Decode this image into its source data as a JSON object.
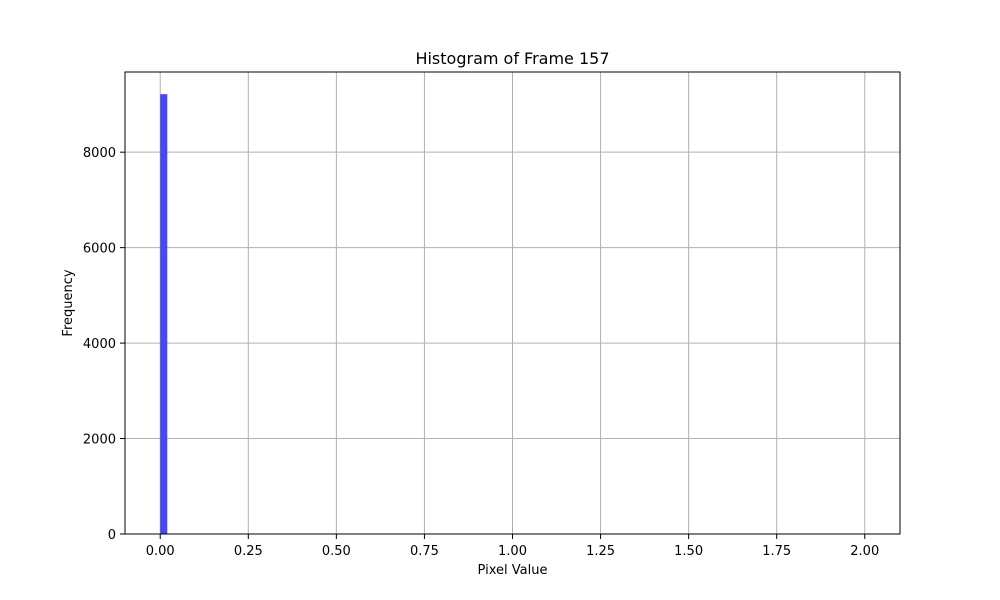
{
  "chart_data": {
    "type": "bar",
    "title": "Histogram of Frame 157",
    "xlabel": "Pixel Value",
    "ylabel": "Frequency",
    "xlim": [
      -0.1,
      2.1
    ],
    "ylim": [
      0,
      9680
    ],
    "grid": true,
    "x_ticks": [
      0.0,
      0.25,
      0.5,
      0.75,
      1.0,
      1.25,
      1.5,
      1.75,
      2.0
    ],
    "x_tick_labels": [
      "0.00",
      "0.25",
      "0.50",
      "0.75",
      "1.00",
      "1.25",
      "1.50",
      "1.75",
      "2.00"
    ],
    "y_ticks": [
      0,
      2000,
      4000,
      6000,
      8000
    ],
    "y_tick_labels": [
      "0",
      "2000",
      "4000",
      "6000",
      "8000"
    ],
    "bin_width": 0.02,
    "bins": [
      {
        "x_start": 0.0,
        "x_end": 0.02,
        "count": 9216
      }
    ],
    "bar_color": "#4949f2",
    "grid_color": "#b0b0b0"
  }
}
